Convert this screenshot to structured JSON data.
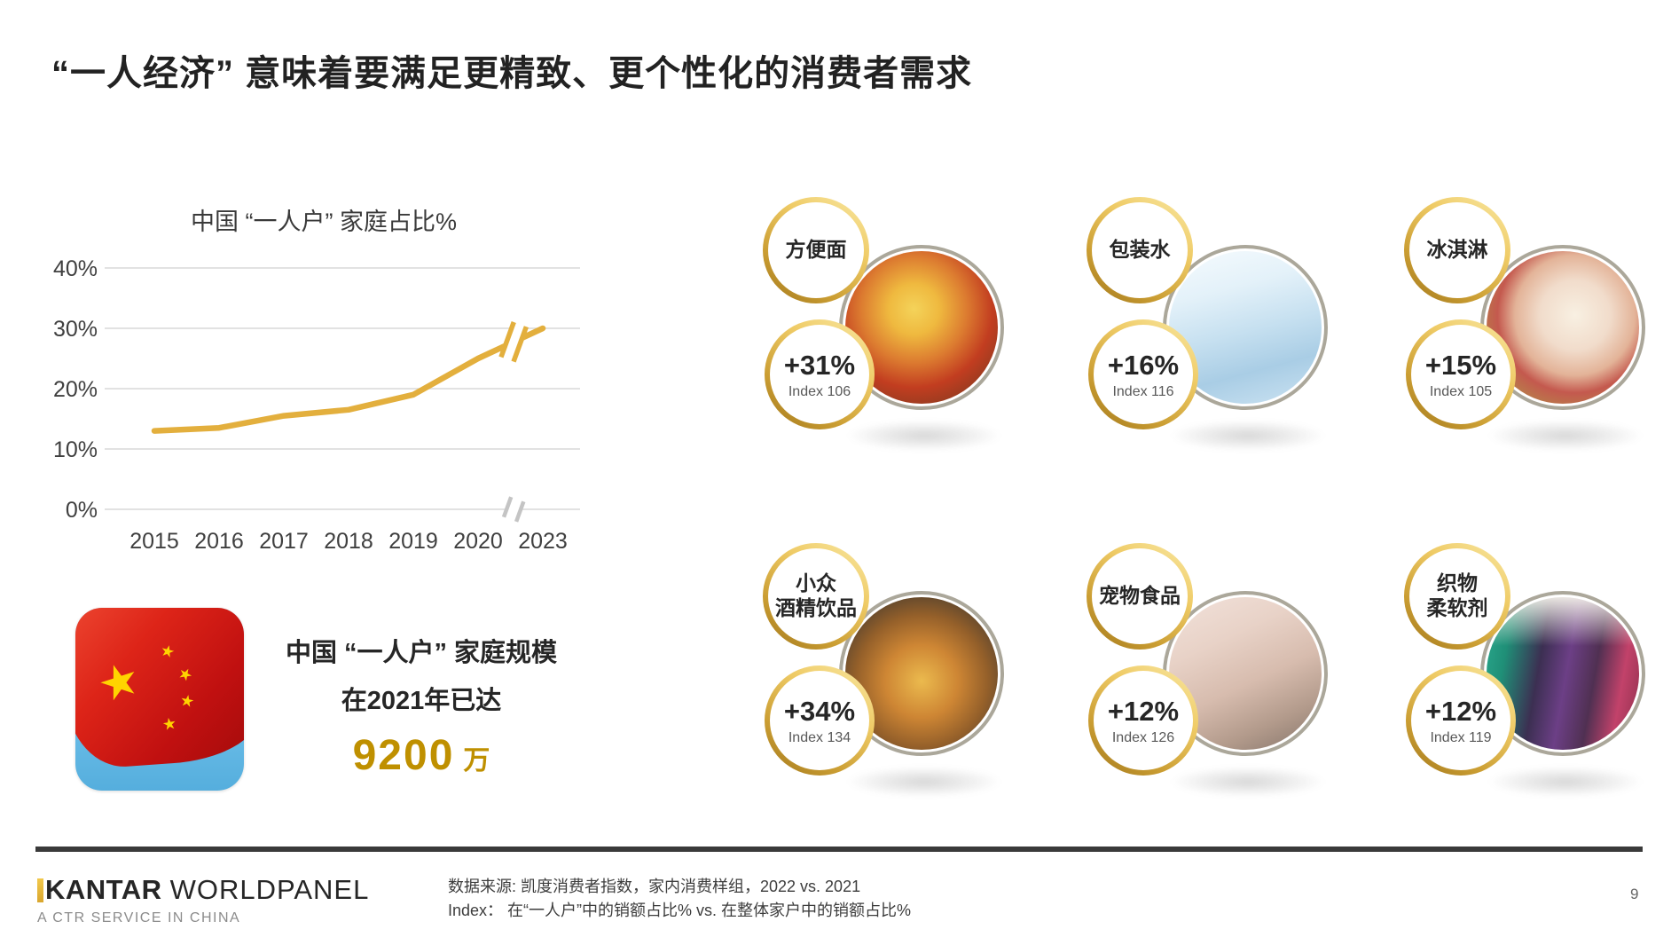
{
  "slide": {
    "title": "“一人经济” 意味着要满足更精致、更个性化的消费者需求",
    "page_number": "9"
  },
  "chart_data": {
    "type": "line",
    "title": "中国 “一人户” 家庭占比%",
    "x": [
      "2015",
      "2016",
      "2017",
      "2018",
      "2019",
      "2020",
      "2023"
    ],
    "values": [
      13,
      13.5,
      15.5,
      16.5,
      19,
      25,
      30
    ],
    "yticks": [
      "0%",
      "10%",
      "20%",
      "30%",
      "40%"
    ],
    "ylim": [
      0,
      40
    ],
    "ytick_step": 10,
    "axis_break_between": [
      "2020",
      "2023"
    ],
    "grid": true,
    "line_color": "#E3AF3D",
    "legend": "none"
  },
  "highlight": {
    "line1": "中国 “一人户” 家庭规模",
    "line2": "在2021年已达",
    "number": "9200",
    "unit": "万",
    "flag_icon": "china-flag-icon",
    "number_color": "#BF9000"
  },
  "products": [
    {
      "category": "方便面",
      "growth": "+31%",
      "index": "Index 106",
      "photo": "instant-noodles-photo"
    },
    {
      "category": "包装水",
      "growth": "+16%",
      "index": "Index 116",
      "photo": "bottled-water-photo"
    },
    {
      "category": "冰淇淋",
      "growth": "+15%",
      "index": "Index 105",
      "photo": "ice-cream-photo"
    },
    {
      "category": "小众\n酒精饮品",
      "growth": "+34%",
      "index": "Index 134",
      "photo": "craft-alcohol-photo"
    },
    {
      "category": "宠物食品",
      "growth": "+12%",
      "index": "Index 126",
      "photo": "pet-food-cat-photo"
    },
    {
      "category": "织物\n柔软剂",
      "growth": "+12%",
      "index": "Index 119",
      "photo": "fabric-softener-photo"
    }
  ],
  "footer": {
    "brand_bold": "KANTAR",
    "brand_regular": "WORLDPANEL",
    "brand_sub": "A CTR SERVICE IN CHINA",
    "source_line1": "数据来源: 凯度消费者指数，家内消费样组，2022 vs. 2021",
    "source_line2": "Index：  在“一人户”中的销额占比% vs. 在整体家户中的销额占比%"
  },
  "colors": {
    "gold_accent": "#BF9000",
    "chart_line_gold": "#E3AF3D",
    "ring_gold_light": "#F9E9A6",
    "ring_gold_dark": "#A0761B"
  }
}
